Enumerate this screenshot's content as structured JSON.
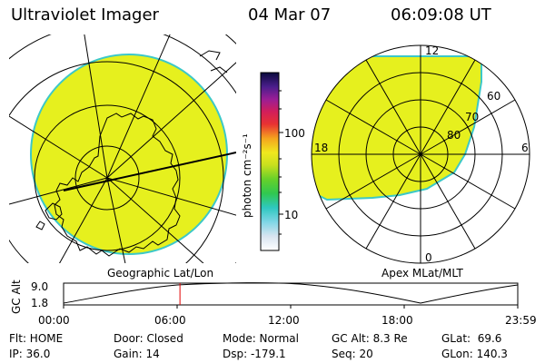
{
  "header": {
    "title": "Ultraviolet Imager",
    "date": "04 Mar 07",
    "time": "06:09:08 UT"
  },
  "colorbar": {
    "unit_label": "photon cm⁻²s⁻¹",
    "ticks": [
      "100",
      "10"
    ]
  },
  "left_panel": {
    "caption": "Geographic Lat/Lon"
  },
  "right_panel": {
    "caption": "Apex MLat/MLT",
    "mlt_labels": [
      "12",
      "18",
      "6",
      "0"
    ],
    "lat_labels": [
      "60",
      "70",
      "80"
    ]
  },
  "timeline": {
    "ylabel": "GC Alt",
    "y_ticks": [
      "9.0",
      "1.8"
    ],
    "x_ticks": [
      "00:00",
      "06:00",
      "12:00",
      "18:00",
      "23:59"
    ],
    "marker_time_hours": 6.15
  },
  "footer": {
    "row1": [
      "Flt: HOME",
      "Door: Closed",
      "Mode: Normal",
      "GC Alt: 8.3 Re",
      "GLat:  69.6"
    ],
    "row2": [
      "IP: 36.0",
      "Gain: 14",
      "Dsp: -179.1",
      "Seq: 20",
      "GLon: 140.3"
    ]
  },
  "colors": {
    "glow": "#e6f01e",
    "glow_edge": "#3cc8c8",
    "marker": "#e00000"
  }
}
